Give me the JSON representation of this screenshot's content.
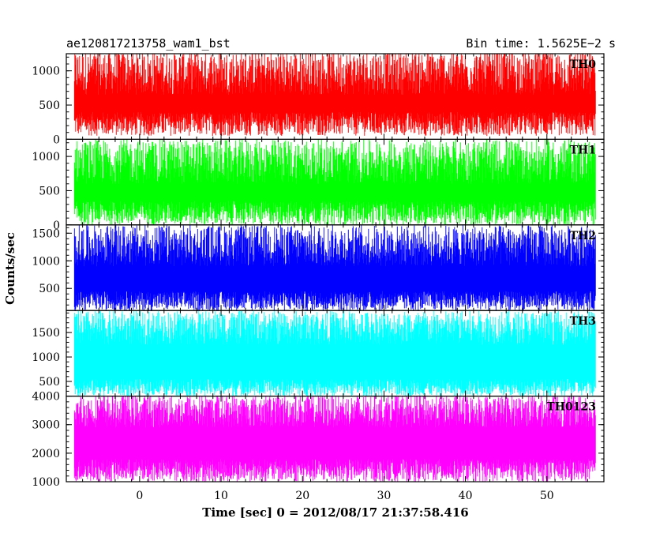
{
  "header": {
    "left_title": "ae120817213758_wam1_bst",
    "right_title": "Bin time: 1.5625E−2 s"
  },
  "chart_data": {
    "type": "line",
    "title": "ae120817213758_wam1_bst",
    "subtitle": "Bin time: 1.5625E−2 s",
    "xlabel": "Time [sec] 0 = 2012/08/17 21:37:58.416",
    "ylabel": "Counts/sec",
    "xlim": [
      -9,
      57
    ],
    "x_range": [
      -8,
      56
    ],
    "x_ticks": [
      0,
      10,
      20,
      30,
      40,
      50
    ],
    "x_tick_labels": [
      "0",
      "10",
      "20",
      "30",
      "40",
      "50"
    ],
    "grid": false,
    "legend": "none",
    "series": [
      {
        "name": "TH0",
        "color": "#ff0000",
        "ylim": [
          0,
          1250
        ],
        "y_ticks": [
          0,
          500,
          1000
        ],
        "y_tick_labels": [
          "0",
          "500",
          "1000"
        ],
        "band_low": [
          50,
          400
        ],
        "band_high": [
          650,
          1300
        ]
      },
      {
        "name": "TH1",
        "color": "#00ff00",
        "ylim": [
          0,
          1250
        ],
        "y_ticks": [
          0,
          500,
          1000
        ],
        "y_tick_labels": [
          "0",
          "500",
          "1000"
        ],
        "band_low": [
          0,
          350
        ],
        "band_high": [
          600,
          1250
        ]
      },
      {
        "name": "TH2",
        "color": "#0000ff",
        "ylim": [
          100,
          1650
        ],
        "y_ticks": [
          500,
          1000,
          1500
        ],
        "y_tick_labels": [
          "500",
          "1000",
          "1500"
        ],
        "band_low": [
          100,
          450
        ],
        "band_high": [
          900,
          1650
        ]
      },
      {
        "name": "TH3",
        "color": "#00ffff",
        "ylim": [
          200,
          1950
        ],
        "y_ticks": [
          500,
          1000,
          1500
        ],
        "y_tick_labels": [
          "500",
          "1000",
          "1500"
        ],
        "band_low": [
          200,
          550
        ],
        "band_high": [
          1250,
          1950
        ]
      },
      {
        "name": "TH0123",
        "color": "#ff00ff",
        "ylim": [
          1000,
          4000
        ],
        "y_ticks": [
          1000,
          2000,
          3000,
          4000
        ],
        "y_tick_labels": [
          "1000",
          "2000",
          "3000",
          "4000"
        ],
        "band_low": [
          1000,
          1800
        ],
        "band_high": [
          2900,
          4050
        ]
      }
    ]
  }
}
